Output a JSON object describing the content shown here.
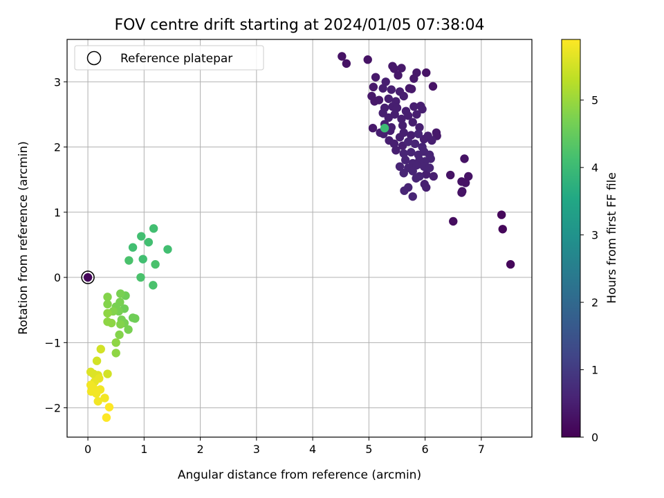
{
  "chart_data": {
    "type": "scatter",
    "title": "FOV centre drift starting at 2024/01/05 07:38:04",
    "xlabel": "Angular distance from reference (arcmin)",
    "ylabel": "Rotation from reference (arcmin)",
    "xlim": [
      -0.37,
      7.9
    ],
    "ylim": [
      -2.45,
      3.65
    ],
    "xticks": [
      "0",
      "1",
      "2",
      "3",
      "4",
      "5",
      "6",
      "7"
    ],
    "yticks": [
      "−2",
      "−1",
      "0",
      "1",
      "2",
      "3"
    ],
    "grid": true,
    "legend": {
      "position": "upper-left",
      "label": "Reference platepar",
      "reference_point": [
        0,
        0
      ]
    },
    "colorbar": {
      "label": "Hours from first FF file",
      "colormap": "viridis",
      "range": [
        0,
        5.9
      ],
      "ticks": [
        "0",
        "1",
        "2",
        "3",
        "4",
        "5"
      ]
    },
    "points": [
      {
        "x": 4.52,
        "y": 3.39,
        "c": 0.3
      },
      {
        "x": 4.6,
        "y": 3.28,
        "c": 0.3
      },
      {
        "x": 4.98,
        "y": 3.34,
        "c": 0.3
      },
      {
        "x": 5.12,
        "y": 3.07,
        "c": 0.4
      },
      {
        "x": 5.42,
        "y": 3.24,
        "c": 0.4
      },
      {
        "x": 5.45,
        "y": 3.2,
        "c": 0.4
      },
      {
        "x": 5.58,
        "y": 3.21,
        "c": 0.4
      },
      {
        "x": 5.52,
        "y": 3.1,
        "c": 0.4
      },
      {
        "x": 5.85,
        "y": 3.14,
        "c": 0.4
      },
      {
        "x": 6.02,
        "y": 3.14,
        "c": 0.3
      },
      {
        "x": 5.8,
        "y": 3.05,
        "c": 0.4
      },
      {
        "x": 6.14,
        "y": 2.93,
        "c": 0.3
      },
      {
        "x": 5.3,
        "y": 3.0,
        "c": 0.5
      },
      {
        "x": 5.08,
        "y": 2.92,
        "c": 0.4
      },
      {
        "x": 5.25,
        "y": 2.9,
        "c": 0.5
      },
      {
        "x": 5.4,
        "y": 2.88,
        "c": 0.5
      },
      {
        "x": 5.55,
        "y": 2.85,
        "c": 0.5
      },
      {
        "x": 5.72,
        "y": 2.9,
        "c": 0.4
      },
      {
        "x": 5.76,
        "y": 2.89,
        "c": 0.4
      },
      {
        "x": 5.05,
        "y": 2.78,
        "c": 0.4
      },
      {
        "x": 5.18,
        "y": 2.72,
        "c": 0.4
      },
      {
        "x": 5.35,
        "y": 2.74,
        "c": 0.5
      },
      {
        "x": 5.48,
        "y": 2.7,
        "c": 0.5
      },
      {
        "x": 5.62,
        "y": 2.78,
        "c": 0.5
      },
      {
        "x": 5.1,
        "y": 2.7,
        "c": 0.4
      },
      {
        "x": 5.28,
        "y": 2.6,
        "c": 0.5
      },
      {
        "x": 5.42,
        "y": 2.62,
        "c": 0.5
      },
      {
        "x": 5.5,
        "y": 2.6,
        "c": 0.5
      },
      {
        "x": 5.66,
        "y": 2.55,
        "c": 0.5
      },
      {
        "x": 5.8,
        "y": 2.62,
        "c": 0.5
      },
      {
        "x": 5.92,
        "y": 2.63,
        "c": 0.5
      },
      {
        "x": 5.95,
        "y": 2.58,
        "c": 0.5
      },
      {
        "x": 5.25,
        "y": 2.52,
        "c": 0.5
      },
      {
        "x": 5.35,
        "y": 2.45,
        "c": 0.5
      },
      {
        "x": 5.46,
        "y": 2.5,
        "c": 0.5
      },
      {
        "x": 5.58,
        "y": 2.43,
        "c": 0.5
      },
      {
        "x": 5.7,
        "y": 2.48,
        "c": 0.5
      },
      {
        "x": 5.85,
        "y": 2.5,
        "c": 0.5
      },
      {
        "x": 5.28,
        "y": 2.35,
        "c": 0.5
      },
      {
        "x": 5.4,
        "y": 2.3,
        "c": 0.5
      },
      {
        "x": 5.6,
        "y": 2.33,
        "c": 0.5
      },
      {
        "x": 5.78,
        "y": 2.38,
        "c": 0.5
      },
      {
        "x": 5.9,
        "y": 2.3,
        "c": 0.5
      },
      {
        "x": 5.07,
        "y": 2.29,
        "c": 0.4
      },
      {
        "x": 5.2,
        "y": 2.22,
        "c": 0.5
      },
      {
        "x": 5.26,
        "y": 2.2,
        "c": 0.5
      },
      {
        "x": 5.38,
        "y": 2.25,
        "c": 0.5
      },
      {
        "x": 5.55,
        "y": 2.15,
        "c": 0.5
      },
      {
        "x": 5.62,
        "y": 2.22,
        "c": 0.5
      },
      {
        "x": 5.75,
        "y": 2.18,
        "c": 0.5
      },
      {
        "x": 5.88,
        "y": 2.2,
        "c": 0.6
      },
      {
        "x": 5.98,
        "y": 2.12,
        "c": 0.5
      },
      {
        "x": 6.05,
        "y": 2.17,
        "c": 0.5
      },
      {
        "x": 6.12,
        "y": 2.1,
        "c": 0.5
      },
      {
        "x": 6.2,
        "y": 2.22,
        "c": 0.4
      },
      {
        "x": 6.21,
        "y": 2.17,
        "c": 0.4
      },
      {
        "x": 5.36,
        "y": 2.1,
        "c": 0.5
      },
      {
        "x": 5.45,
        "y": 2.05,
        "c": 0.5
      },
      {
        "x": 5.6,
        "y": 2.02,
        "c": 0.5
      },
      {
        "x": 5.7,
        "y": 2.08,
        "c": 0.6
      },
      {
        "x": 5.82,
        "y": 2.05,
        "c": 0.6
      },
      {
        "x": 5.95,
        "y": 2.0,
        "c": 0.6
      },
      {
        "x": 5.48,
        "y": 1.95,
        "c": 0.5
      },
      {
        "x": 5.62,
        "y": 1.9,
        "c": 0.6
      },
      {
        "x": 5.75,
        "y": 1.92,
        "c": 0.6
      },
      {
        "x": 5.88,
        "y": 1.88,
        "c": 0.6
      },
      {
        "x": 5.98,
        "y": 1.93,
        "c": 0.6
      },
      {
        "x": 6.08,
        "y": 1.88,
        "c": 0.6
      },
      {
        "x": 5.65,
        "y": 1.8,
        "c": 0.6
      },
      {
        "x": 5.78,
        "y": 1.75,
        "c": 0.6
      },
      {
        "x": 5.9,
        "y": 1.8,
        "c": 0.6
      },
      {
        "x": 6.0,
        "y": 1.78,
        "c": 0.6
      },
      {
        "x": 6.1,
        "y": 1.82,
        "c": 0.6
      },
      {
        "x": 5.55,
        "y": 1.7,
        "c": 0.6
      },
      {
        "x": 5.7,
        "y": 1.68,
        "c": 0.6
      },
      {
        "x": 5.85,
        "y": 1.72,
        "c": 0.6
      },
      {
        "x": 5.98,
        "y": 1.7,
        "c": 0.6
      },
      {
        "x": 6.08,
        "y": 1.68,
        "c": 0.6
      },
      {
        "x": 5.62,
        "y": 1.6,
        "c": 0.6
      },
      {
        "x": 5.78,
        "y": 1.63,
        "c": 0.6
      },
      {
        "x": 5.9,
        "y": 1.55,
        "c": 0.6
      },
      {
        "x": 5.84,
        "y": 1.52,
        "c": 0.6
      },
      {
        "x": 6.02,
        "y": 1.58,
        "c": 0.5
      },
      {
        "x": 6.15,
        "y": 1.55,
        "c": 0.5
      },
      {
        "x": 5.7,
        "y": 1.38,
        "c": 0.6
      },
      {
        "x": 5.63,
        "y": 1.33,
        "c": 0.6
      },
      {
        "x": 5.99,
        "y": 1.43,
        "c": 0.5
      },
      {
        "x": 6.02,
        "y": 1.38,
        "c": 0.5
      },
      {
        "x": 5.78,
        "y": 1.24,
        "c": 0.6
      },
      {
        "x": 6.45,
        "y": 1.57,
        "c": 0.3
      },
      {
        "x": 6.65,
        "y": 1.47,
        "c": 0.3
      },
      {
        "x": 6.72,
        "y": 1.45,
        "c": 0.3
      },
      {
        "x": 6.77,
        "y": 1.55,
        "c": 0.3
      },
      {
        "x": 6.7,
        "y": 1.82,
        "c": 0.3
      },
      {
        "x": 6.66,
        "y": 1.32,
        "c": 0.3
      },
      {
        "x": 6.65,
        "y": 1.3,
        "c": 0.3
      },
      {
        "x": 6.5,
        "y": 0.86,
        "c": 0.2
      },
      {
        "x": 7.36,
        "y": 0.96,
        "c": 0.1
      },
      {
        "x": 7.38,
        "y": 0.74,
        "c": 0.1
      },
      {
        "x": 7.52,
        "y": 0.2,
        "c": 0.1
      },
      {
        "x": 0.0,
        "y": 0.0,
        "c": 0.1
      },
      {
        "x": 5.28,
        "y": 2.29,
        "c": 4.0
      },
      {
        "x": 1.17,
        "y": 0.75,
        "c": 4.1
      },
      {
        "x": 0.95,
        "y": 0.63,
        "c": 4.1
      },
      {
        "x": 1.08,
        "y": 0.54,
        "c": 4.1
      },
      {
        "x": 0.8,
        "y": 0.46,
        "c": 4.1
      },
      {
        "x": 1.42,
        "y": 0.43,
        "c": 4.1
      },
      {
        "x": 0.98,
        "y": 0.28,
        "c": 4.1
      },
      {
        "x": 0.73,
        "y": 0.26,
        "c": 4.2
      },
      {
        "x": 1.2,
        "y": 0.2,
        "c": 4.2
      },
      {
        "x": 0.94,
        "y": 0.0,
        "c": 4.2
      },
      {
        "x": 1.16,
        "y": -0.12,
        "c": 4.2
      },
      {
        "x": 0.58,
        "y": -0.25,
        "c": 4.7
      },
      {
        "x": 0.67,
        "y": -0.28,
        "c": 4.6
      },
      {
        "x": 0.35,
        "y": -0.3,
        "c": 4.8
      },
      {
        "x": 0.57,
        "y": -0.38,
        "c": 4.7
      },
      {
        "x": 0.35,
        "y": -0.41,
        "c": 4.8
      },
      {
        "x": 0.5,
        "y": -0.45,
        "c": 4.7
      },
      {
        "x": 0.65,
        "y": -0.48,
        "c": 4.6
      },
      {
        "x": 0.45,
        "y": -0.52,
        "c": 4.8
      },
      {
        "x": 0.55,
        "y": -0.52,
        "c": 4.7
      },
      {
        "x": 0.35,
        "y": -0.55,
        "c": 4.9
      },
      {
        "x": 0.8,
        "y": -0.62,
        "c": 4.6
      },
      {
        "x": 0.84,
        "y": -0.63,
        "c": 4.6
      },
      {
        "x": 0.6,
        "y": -0.65,
        "c": 4.7
      },
      {
        "x": 0.35,
        "y": -0.68,
        "c": 4.9
      },
      {
        "x": 0.42,
        "y": -0.7,
        "c": 4.9
      },
      {
        "x": 0.58,
        "y": -0.72,
        "c": 4.8
      },
      {
        "x": 0.65,
        "y": -0.7,
        "c": 4.7
      },
      {
        "x": 0.72,
        "y": -0.8,
        "c": 4.7
      },
      {
        "x": 0.56,
        "y": -0.88,
        "c": 4.8
      },
      {
        "x": 0.5,
        "y": -1.0,
        "c": 4.9
      },
      {
        "x": 0.5,
        "y": -1.16,
        "c": 4.9
      },
      {
        "x": 0.23,
        "y": -1.1,
        "c": 5.5
      },
      {
        "x": 0.16,
        "y": -1.28,
        "c": 5.5
      },
      {
        "x": 0.05,
        "y": -1.45,
        "c": 5.6
      },
      {
        "x": 0.1,
        "y": -1.48,
        "c": 5.6
      },
      {
        "x": 0.18,
        "y": -1.5,
        "c": 5.6
      },
      {
        "x": 0.35,
        "y": -1.48,
        "c": 5.5
      },
      {
        "x": 0.2,
        "y": -1.55,
        "c": 5.7
      },
      {
        "x": 0.12,
        "y": -1.6,
        "c": 5.7
      },
      {
        "x": 0.05,
        "y": -1.65,
        "c": 5.8
      },
      {
        "x": 0.1,
        "y": -1.7,
        "c": 5.8
      },
      {
        "x": 0.22,
        "y": -1.72,
        "c": 5.8
      },
      {
        "x": 0.06,
        "y": -1.75,
        "c": 5.8
      },
      {
        "x": 0.15,
        "y": -1.78,
        "c": 5.8
      },
      {
        "x": 0.3,
        "y": -1.85,
        "c": 5.8
      },
      {
        "x": 0.18,
        "y": -1.9,
        "c": 5.8
      },
      {
        "x": 0.38,
        "y": -1.99,
        "c": 5.9
      },
      {
        "x": 0.33,
        "y": -2.15,
        "c": 5.9
      }
    ]
  }
}
